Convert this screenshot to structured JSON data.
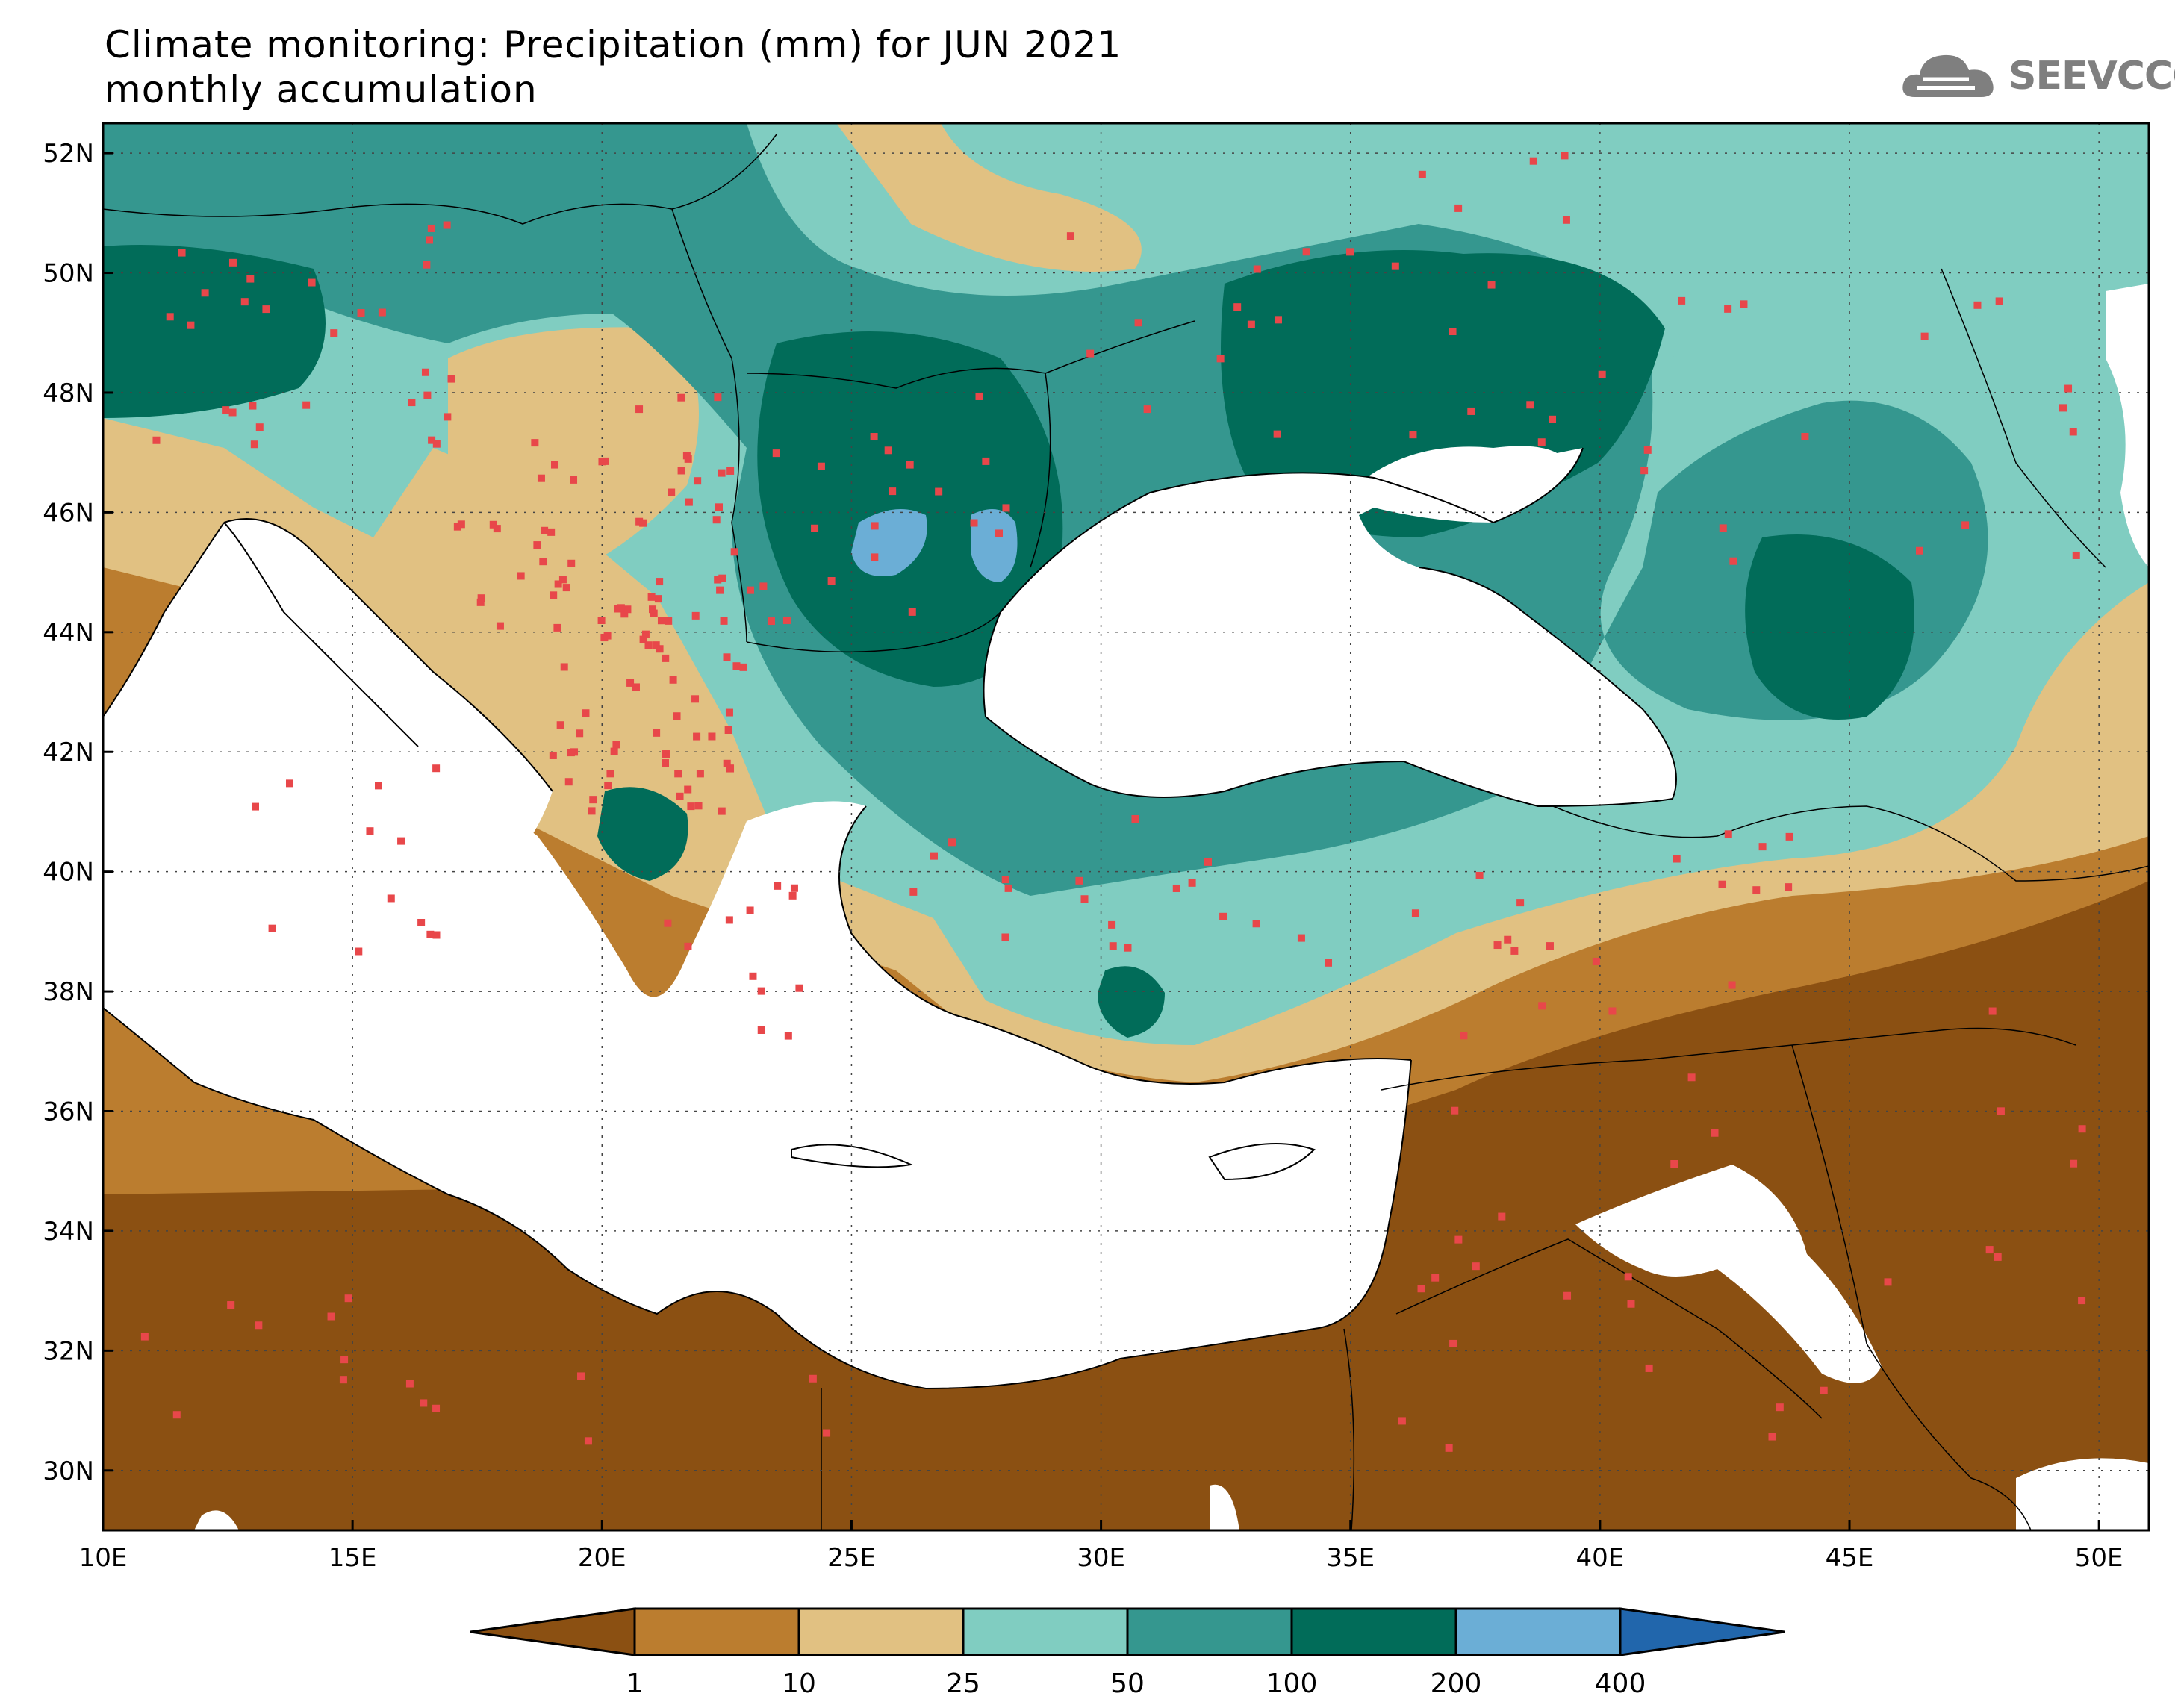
{
  "header": {
    "title_line1": "Climate monitoring: Precipitation (mm) for JUN 2021",
    "title_line2": "monthly accumulation"
  },
  "logo": {
    "text": "SEEVCCC",
    "icon": "cloud-icon"
  },
  "map": {
    "lon_ticks": [
      "10E",
      "15E",
      "20E",
      "25E",
      "30E",
      "35E",
      "40E",
      "45E",
      "50E"
    ],
    "lat_ticks": [
      "52N",
      "50N",
      "48N",
      "46N",
      "44N",
      "42N",
      "40N",
      "38N",
      "36N",
      "34N",
      "32N",
      "30N"
    ],
    "lon_range": [
      10,
      51
    ],
    "lat_range": [
      29,
      52.5
    ],
    "gridlines": true
  },
  "colorbar": {
    "labels": [
      "1",
      "10",
      "25",
      "50",
      "100",
      "200",
      "400"
    ],
    "colors": [
      "#8b5012",
      "#bb7d2f",
      "#e1c182",
      "#80cdc1",
      "#35978f",
      "#016c59",
      "#6baed6",
      "#2166ac"
    ],
    "extend": "both"
  },
  "colors": {
    "station_marker": "#e8474a",
    "land_outline": "#000000",
    "sea": "#ffffff"
  }
}
